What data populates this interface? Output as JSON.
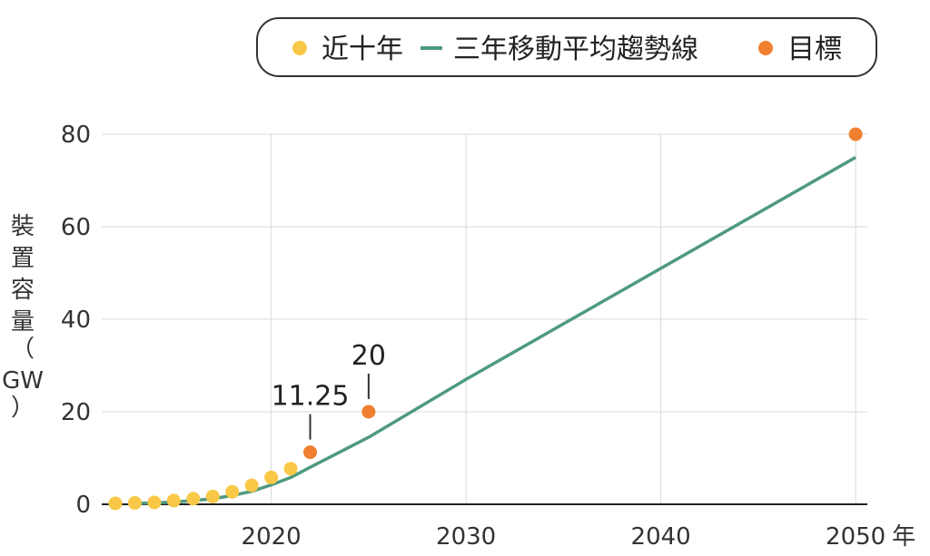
{
  "chart_data": {
    "type": "scatter",
    "xlabel_suffix": "年",
    "ylabel_chars": [
      "裝",
      "置",
      "容",
      "量",
      "（",
      "GW",
      "）"
    ],
    "xlim": [
      2011.3,
      2050.6
    ],
    "ylim": [
      0,
      80
    ],
    "xticks": [
      2020,
      2030,
      2040,
      2050
    ],
    "xtick_labels": [
      "2020",
      "2030",
      "2040",
      "2050"
    ],
    "yticks": [
      0,
      20,
      40,
      60,
      80
    ],
    "ytick_labels": [
      "0",
      "20",
      "40",
      "60",
      "80"
    ],
    "grid": true,
    "legend_position": "top",
    "legend": [
      {
        "label": "近十年",
        "kind": "dot",
        "color": "#F9C846"
      },
      {
        "label": "三年移動平均趨勢線",
        "kind": "line",
        "color": "#4E9A7E"
      },
      {
        "label": "目標",
        "kind": "dot",
        "color": "#F08030"
      }
    ],
    "series": [
      {
        "name": "近十年",
        "kind": "scatter",
        "color": "#F9C846",
        "x": [
          2012,
          2013,
          2014,
          2015,
          2016,
          2017,
          2018,
          2019,
          2020,
          2021
        ],
        "y": [
          0.2,
          0.3,
          0.4,
          0.8,
          1.2,
          1.7,
          2.7,
          4.1,
          5.8,
          7.7
        ]
      },
      {
        "name": "三年移動平均趨勢線",
        "kind": "line",
        "color": "#4E9A7E",
        "x": [
          2013,
          2014,
          2015,
          2016,
          2017,
          2018,
          2019,
          2020,
          2021,
          2022,
          2025,
          2030,
          2040,
          2050
        ],
        "y": [
          0.2,
          0.3,
          0.5,
          0.8,
          1.2,
          1.9,
          2.8,
          4.2,
          5.8,
          8.0,
          14.5,
          27.0,
          51.0,
          75.0
        ]
      },
      {
        "name": "目標",
        "kind": "scatter",
        "color": "#F08030",
        "x": [
          2022,
          2025,
          2050
        ],
        "y": [
          11.25,
          20,
          80
        ],
        "labels": [
          "11.25",
          "20",
          ""
        ]
      }
    ]
  }
}
